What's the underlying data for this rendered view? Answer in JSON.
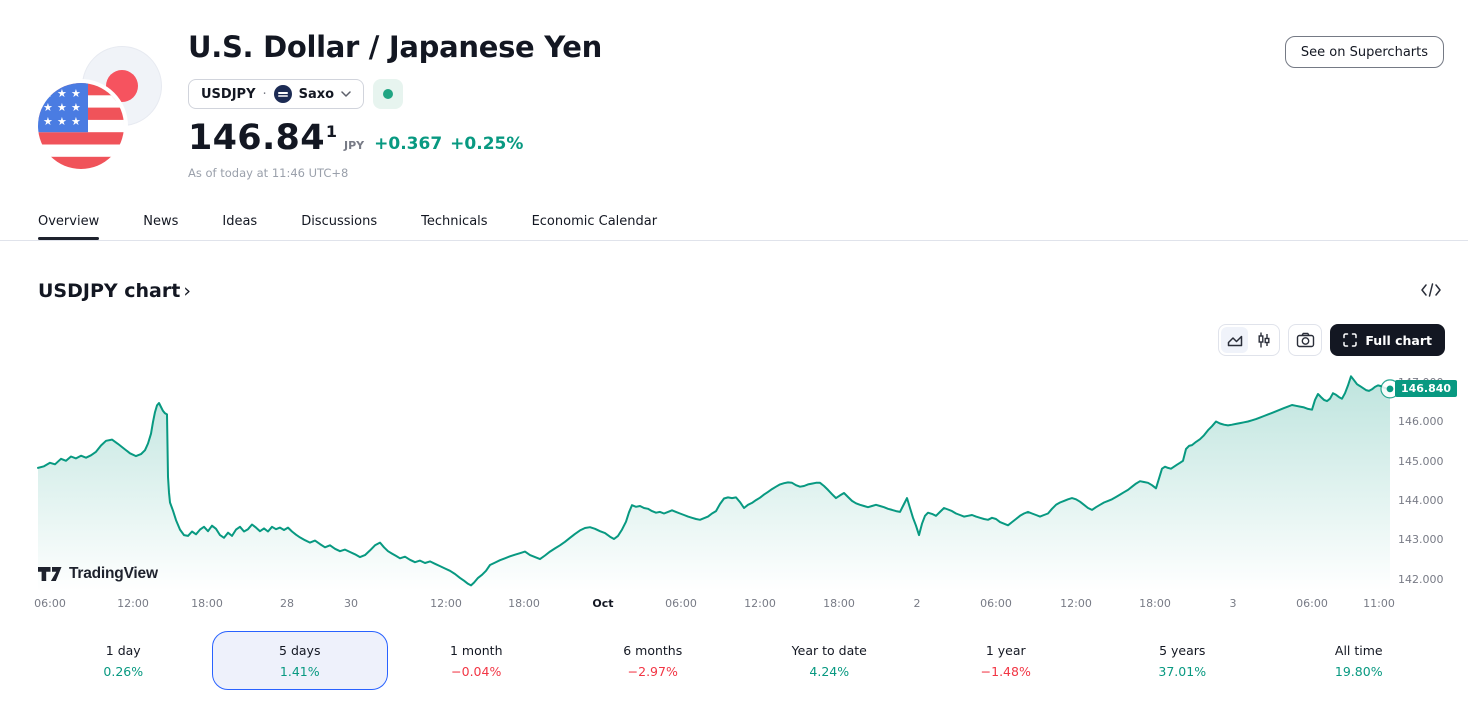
{
  "header": {
    "title": "U.S. Dollar / Japanese Yen",
    "symbol": "USDJPY",
    "separator": "·",
    "exchange": "Saxo",
    "market_status": "open",
    "price_main": "146.84",
    "price_sup": "1",
    "currency": "JPY",
    "change_abs": "+0.367",
    "change_pct": "+0.25%",
    "as_of": "As of today at 11:46 UTC+8",
    "supercharts_button": "See on Supercharts"
  },
  "tabs": [
    {
      "label": "Overview",
      "active": true
    },
    {
      "label": "News",
      "active": false
    },
    {
      "label": "Ideas",
      "active": false
    },
    {
      "label": "Discussions",
      "active": false
    },
    {
      "label": "Technicals",
      "active": false
    },
    {
      "label": "Economic Calendar",
      "active": false
    }
  ],
  "section": {
    "title": "USDJPY chart",
    "chevron": "›"
  },
  "toolbar": {
    "full_chart_label": "Full chart"
  },
  "watermark": {
    "text": "TradingView"
  },
  "icons": {
    "embed": "</>",
    "chevron_down": "⌄",
    "chart_styles": [
      "area",
      "candles"
    ],
    "snapshot": "camera",
    "fullscreen": "corner-brackets"
  },
  "colors": {
    "up_green": "#089981",
    "down_red": "#f23645",
    "selected_blue": "#2962ff",
    "dark_text": "#131722",
    "muted_text": "#787b86"
  },
  "periods": [
    {
      "label": "1 day",
      "value": "0.26%",
      "direction": "up",
      "selected": false
    },
    {
      "label": "5 days",
      "value": "1.41%",
      "direction": "up",
      "selected": true
    },
    {
      "label": "1 month",
      "value": "−0.04%",
      "direction": "down",
      "selected": false
    },
    {
      "label": "6 months",
      "value": "−2.97%",
      "direction": "down",
      "selected": false
    },
    {
      "label": "Year to date",
      "value": "4.24%",
      "direction": "up",
      "selected": false
    },
    {
      "label": "1 year",
      "value": "−1.48%",
      "direction": "down",
      "selected": false
    },
    {
      "label": "5 years",
      "value": "37.01%",
      "direction": "up",
      "selected": false
    },
    {
      "label": "All time",
      "value": "19.80%",
      "direction": "up",
      "selected": false
    }
  ],
  "chart_data": {
    "type": "area",
    "title": "USDJPY 5 days chart",
    "unit": "JPY",
    "line_color": "#089981",
    "last_price": 146.84,
    "last_price_label": "146.840",
    "ylim": [
      141.7,
      147.35
    ],
    "grid": false,
    "y_ticks": [
      {
        "label": "147.000",
        "value": 147
      },
      {
        "label": "146.000",
        "value": 146
      },
      {
        "label": "145.000",
        "value": 145
      },
      {
        "label": "144.000",
        "value": 144
      },
      {
        "label": "143.000",
        "value": 143
      },
      {
        "label": "142.000",
        "value": 142
      }
    ],
    "x_ticks": [
      {
        "label": "06:00",
        "x": 50
      },
      {
        "label": "12:00",
        "x": 133
      },
      {
        "label": "18:00",
        "x": 207
      },
      {
        "label": "28",
        "x": 287
      },
      {
        "label": "30",
        "x": 351
      },
      {
        "label": "12:00",
        "x": 446
      },
      {
        "label": "18:00",
        "x": 524
      },
      {
        "label": "Oct",
        "x": 603,
        "bold": true
      },
      {
        "label": "06:00",
        "x": 681
      },
      {
        "label": "12:00",
        "x": 760
      },
      {
        "label": "18:00",
        "x": 839
      },
      {
        "label": "2",
        "x": 917
      },
      {
        "label": "06:00",
        "x": 996
      },
      {
        "label": "12:00",
        "x": 1076
      },
      {
        "label": "18:00",
        "x": 1155
      },
      {
        "label": "3",
        "x": 1233
      },
      {
        "label": "06:00",
        "x": 1312
      },
      {
        "label": "11:00",
        "x": 1379
      }
    ],
    "points": [
      [
        38,
        144.83
      ],
      [
        44,
        144.87
      ],
      [
        50,
        144.96
      ],
      [
        55,
        144.92
      ],
      [
        61,
        145.06
      ],
      [
        66,
        145.01
      ],
      [
        71,
        145.12
      ],
      [
        76,
        145.07
      ],
      [
        81,
        145.14
      ],
      [
        86,
        145.09
      ],
      [
        91,
        145.15
      ],
      [
        96,
        145.24
      ],
      [
        101,
        145.4
      ],
      [
        106,
        145.52
      ],
      [
        112,
        145.55
      ],
      [
        118,
        145.44
      ],
      [
        124,
        145.32
      ],
      [
        130,
        145.2
      ],
      [
        136,
        145.13
      ],
      [
        141,
        145.18
      ],
      [
        145,
        145.28
      ],
      [
        148,
        145.45
      ],
      [
        151,
        145.7
      ],
      [
        153,
        146.0
      ],
      [
        155,
        146.25
      ],
      [
        157,
        146.42
      ],
      [
        159,
        146.48
      ],
      [
        161,
        146.38
      ],
      [
        163,
        146.28
      ],
      [
        165,
        146.22
      ],
      [
        167,
        146.19
      ],
      [
        168,
        144.6
      ],
      [
        169,
        144.2
      ],
      [
        170,
        143.95
      ],
      [
        173,
        143.74
      ],
      [
        176,
        143.5
      ],
      [
        180,
        143.26
      ],
      [
        184,
        143.12
      ],
      [
        188,
        143.1
      ],
      [
        192,
        143.21
      ],
      [
        196,
        143.14
      ],
      [
        200,
        143.26
      ],
      [
        204,
        143.33
      ],
      [
        208,
        143.22
      ],
      [
        212,
        143.36
      ],
      [
        216,
        143.28
      ],
      [
        220,
        143.12
      ],
      [
        224,
        143.05
      ],
      [
        228,
        143.18
      ],
      [
        232,
        143.1
      ],
      [
        236,
        143.26
      ],
      [
        240,
        143.33
      ],
      [
        244,
        143.21
      ],
      [
        248,
        143.27
      ],
      [
        252,
        143.39
      ],
      [
        256,
        143.31
      ],
      [
        260,
        143.22
      ],
      [
        264,
        143.29
      ],
      [
        268,
        143.21
      ],
      [
        272,
        143.33
      ],
      [
        276,
        143.27
      ],
      [
        280,
        143.31
      ],
      [
        284,
        143.25
      ],
      [
        288,
        143.31
      ],
      [
        292,
        143.21
      ],
      [
        296,
        143.13
      ],
      [
        300,
        143.06
      ],
      [
        305,
        142.99
      ],
      [
        310,
        142.93
      ],
      [
        315,
        142.98
      ],
      [
        320,
        142.89
      ],
      [
        325,
        142.81
      ],
      [
        330,
        142.86
      ],
      [
        335,
        142.77
      ],
      [
        340,
        142.71
      ],
      [
        345,
        142.75
      ],
      [
        350,
        142.69
      ],
      [
        355,
        142.63
      ],
      [
        360,
        142.56
      ],
      [
        365,
        142.61
      ],
      [
        370,
        142.73
      ],
      [
        375,
        142.86
      ],
      [
        380,
        142.93
      ],
      [
        384,
        142.81
      ],
      [
        388,
        142.71
      ],
      [
        392,
        142.65
      ],
      [
        396,
        142.59
      ],
      [
        400,
        142.53
      ],
      [
        405,
        142.57
      ],
      [
        410,
        142.49
      ],
      [
        415,
        142.43
      ],
      [
        420,
        142.47
      ],
      [
        425,
        142.41
      ],
      [
        430,
        142.45
      ],
      [
        435,
        142.39
      ],
      [
        440,
        142.33
      ],
      [
        445,
        142.27
      ],
      [
        450,
        142.21
      ],
      [
        455,
        142.13
      ],
      [
        460,
        142.03
      ],
      [
        464,
        141.96
      ],
      [
        468,
        141.88
      ],
      [
        471,
        141.84
      ],
      [
        474,
        141.91
      ],
      [
        478,
        142.03
      ],
      [
        482,
        142.11
      ],
      [
        486,
        142.21
      ],
      [
        490,
        142.36
      ],
      [
        495,
        142.42
      ],
      [
        500,
        142.48
      ],
      [
        505,
        142.53
      ],
      [
        510,
        142.58
      ],
      [
        515,
        142.62
      ],
      [
        520,
        142.66
      ],
      [
        525,
        142.7
      ],
      [
        530,
        142.61
      ],
      [
        535,
        142.56
      ],
      [
        540,
        142.51
      ],
      [
        545,
        142.6
      ],
      [
        550,
        142.7
      ],
      [
        555,
        142.78
      ],
      [
        560,
        142.86
      ],
      [
        565,
        142.95
      ],
      [
        570,
        143.05
      ],
      [
        575,
        143.15
      ],
      [
        580,
        143.24
      ],
      [
        585,
        143.3
      ],
      [
        590,
        143.32
      ],
      [
        595,
        143.28
      ],
      [
        600,
        143.22
      ],
      [
        605,
        143.17
      ],
      [
        610,
        143.08
      ],
      [
        614,
        143.02
      ],
      [
        618,
        143.1
      ],
      [
        622,
        143.26
      ],
      [
        626,
        143.46
      ],
      [
        629,
        143.7
      ],
      [
        632,
        143.88
      ],
      [
        636,
        143.84
      ],
      [
        640,
        143.86
      ],
      [
        644,
        143.81
      ],
      [
        648,
        143.79
      ],
      [
        652,
        143.73
      ],
      [
        656,
        143.69
      ],
      [
        660,
        143.71
      ],
      [
        664,
        143.67
      ],
      [
        668,
        143.71
      ],
      [
        672,
        143.75
      ],
      [
        676,
        143.71
      ],
      [
        680,
        143.67
      ],
      [
        684,
        143.63
      ],
      [
        688,
        143.59
      ],
      [
        692,
        143.56
      ],
      [
        696,
        143.53
      ],
      [
        700,
        143.51
      ],
      [
        704,
        143.55
      ],
      [
        708,
        143.59
      ],
      [
        712,
        143.67
      ],
      [
        716,
        143.73
      ],
      [
        720,
        143.91
      ],
      [
        724,
        144.05
      ],
      [
        728,
        144.08
      ],
      [
        732,
        144.06
      ],
      [
        736,
        144.08
      ],
      [
        740,
        143.96
      ],
      [
        744,
        143.81
      ],
      [
        748,
        143.89
      ],
      [
        752,
        143.94
      ],
      [
        756,
        144.01
      ],
      [
        760,
        144.07
      ],
      [
        764,
        144.15
      ],
      [
        768,
        144.22
      ],
      [
        772,
        144.29
      ],
      [
        776,
        144.35
      ],
      [
        780,
        144.41
      ],
      [
        784,
        144.44
      ],
      [
        788,
        144.46
      ],
      [
        792,
        144.45
      ],
      [
        796,
        144.39
      ],
      [
        800,
        144.35
      ],
      [
        804,
        144.37
      ],
      [
        808,
        144.41
      ],
      [
        812,
        144.43
      ],
      [
        816,
        144.45
      ],
      [
        820,
        144.45
      ],
      [
        824,
        144.37
      ],
      [
        828,
        144.27
      ],
      [
        832,
        144.16
      ],
      [
        836,
        144.06
      ],
      [
        840,
        144.13
      ],
      [
        844,
        144.19
      ],
      [
        848,
        144.09
      ],
      [
        852,
        143.99
      ],
      [
        856,
        143.93
      ],
      [
        860,
        143.89
      ],
      [
        864,
        143.86
      ],
      [
        868,
        143.83
      ],
      [
        872,
        143.86
      ],
      [
        876,
        143.89
      ],
      [
        880,
        143.86
      ],
      [
        884,
        143.83
      ],
      [
        888,
        143.79
      ],
      [
        892,
        143.76
      ],
      [
        896,
        143.73
      ],
      [
        900,
        143.71
      ],
      [
        904,
        143.91
      ],
      [
        907,
        144.06
      ],
      [
        910,
        143.81
      ],
      [
        913,
        143.56
      ],
      [
        916,
        143.36
      ],
      [
        919,
        143.12
      ],
      [
        922,
        143.41
      ],
      [
        925,
        143.61
      ],
      [
        928,
        143.69
      ],
      [
        932,
        143.66
      ],
      [
        936,
        143.61
      ],
      [
        940,
        143.71
      ],
      [
        944,
        143.81
      ],
      [
        948,
        143.77
      ],
      [
        952,
        143.73
      ],
      [
        956,
        143.67
      ],
      [
        960,
        143.63
      ],
      [
        964,
        143.59
      ],
      [
        968,
        143.61
      ],
      [
        972,
        143.63
      ],
      [
        976,
        143.59
      ],
      [
        980,
        143.56
      ],
      [
        984,
        143.53
      ],
      [
        988,
        143.51
      ],
      [
        992,
        143.56
      ],
      [
        996,
        143.53
      ],
      [
        1000,
        143.45
      ],
      [
        1004,
        143.41
      ],
      [
        1008,
        143.37
      ],
      [
        1012,
        143.45
      ],
      [
        1016,
        143.53
      ],
      [
        1020,
        143.61
      ],
      [
        1024,
        143.67
      ],
      [
        1028,
        143.71
      ],
      [
        1032,
        143.67
      ],
      [
        1036,
        143.63
      ],
      [
        1040,
        143.59
      ],
      [
        1044,
        143.63
      ],
      [
        1048,
        143.67
      ],
      [
        1052,
        143.79
      ],
      [
        1056,
        143.89
      ],
      [
        1060,
        143.95
      ],
      [
        1064,
        143.99
      ],
      [
        1068,
        144.03
      ],
      [
        1072,
        144.06
      ],
      [
        1076,
        144.03
      ],
      [
        1080,
        143.97
      ],
      [
        1084,
        143.89
      ],
      [
        1088,
        143.81
      ],
      [
        1092,
        143.76
      ],
      [
        1096,
        143.83
      ],
      [
        1100,
        143.89
      ],
      [
        1104,
        143.95
      ],
      [
        1108,
        143.99
      ],
      [
        1112,
        144.03
      ],
      [
        1116,
        144.09
      ],
      [
        1120,
        144.15
      ],
      [
        1124,
        144.21
      ],
      [
        1128,
        144.27
      ],
      [
        1132,
        144.35
      ],
      [
        1136,
        144.43
      ],
      [
        1140,
        144.49
      ],
      [
        1144,
        144.47
      ],
      [
        1148,
        144.45
      ],
      [
        1152,
        144.39
      ],
      [
        1156,
        144.31
      ],
      [
        1159,
        144.56
      ],
      [
        1162,
        144.81
      ],
      [
        1165,
        144.86
      ],
      [
        1168,
        144.83
      ],
      [
        1171,
        144.81
      ],
      [
        1174,
        144.86
      ],
      [
        1177,
        144.91
      ],
      [
        1180,
        144.96
      ],
      [
        1183,
        145.01
      ],
      [
        1186,
        145.31
      ],
      [
        1189,
        145.39
      ],
      [
        1192,
        145.41
      ],
      [
        1196,
        145.49
      ],
      [
        1200,
        145.56
      ],
      [
        1204,
        145.66
      ],
      [
        1208,
        145.79
      ],
      [
        1212,
        145.89
      ],
      [
        1216,
        146.01
      ],
      [
        1220,
        145.96
      ],
      [
        1224,
        145.93
      ],
      [
        1228,
        145.91
      ],
      [
        1232,
        145.93
      ],
      [
        1236,
        145.95
      ],
      [
        1240,
        145.97
      ],
      [
        1244,
        145.99
      ],
      [
        1248,
        146.01
      ],
      [
        1252,
        146.04
      ],
      [
        1256,
        146.07
      ],
      [
        1260,
        146.11
      ],
      [
        1264,
        146.15
      ],
      [
        1268,
        146.19
      ],
      [
        1272,
        146.23
      ],
      [
        1276,
        146.27
      ],
      [
        1280,
        146.31
      ],
      [
        1284,
        146.35
      ],
      [
        1288,
        146.39
      ],
      [
        1292,
        146.43
      ],
      [
        1296,
        146.41
      ],
      [
        1300,
        146.39
      ],
      [
        1304,
        146.37
      ],
      [
        1308,
        146.33
      ],
      [
        1312,
        146.31
      ],
      [
        1315,
        146.56
      ],
      [
        1318,
        146.71
      ],
      [
        1321,
        146.63
      ],
      [
        1324,
        146.56
      ],
      [
        1327,
        146.53
      ],
      [
        1330,
        146.59
      ],
      [
        1333,
        146.73
      ],
      [
        1336,
        146.69
      ],
      [
        1339,
        146.63
      ],
      [
        1342,
        146.59
      ],
      [
        1345,
        146.73
      ],
      [
        1348,
        146.93
      ],
      [
        1351,
        147.16
      ],
      [
        1354,
        147.06
      ],
      [
        1357,
        146.96
      ],
      [
        1360,
        146.91
      ],
      [
        1363,
        146.86
      ],
      [
        1366,
        146.81
      ],
      [
        1369,
        146.79
      ],
      [
        1372,
        146.83
      ],
      [
        1375,
        146.89
      ],
      [
        1378,
        146.93
      ],
      [
        1381,
        146.91
      ],
      [
        1384,
        146.87
      ],
      [
        1387,
        146.85
      ],
      [
        1390,
        146.84
      ]
    ]
  }
}
